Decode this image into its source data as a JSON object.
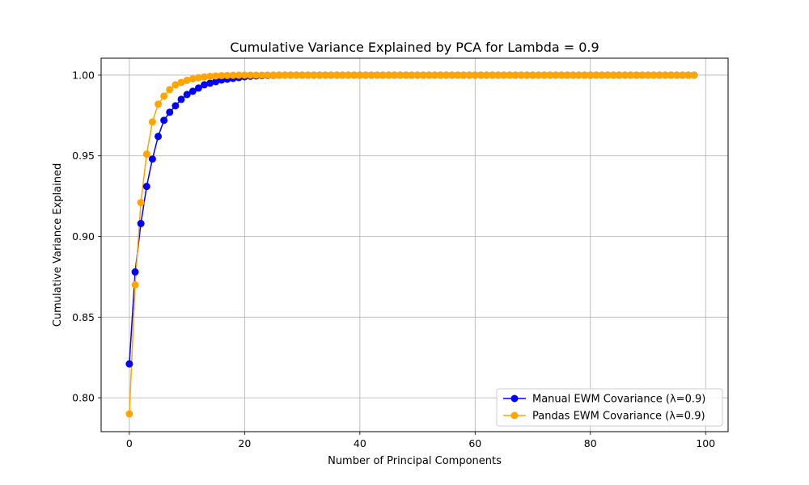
{
  "chart_data": {
    "type": "line",
    "title": "Cumulative Variance Explained by PCA for Lambda = 0.9",
    "xlabel": "Number of Principal Components",
    "ylabel": "Cumulative Variance Explained",
    "xlim": [
      -4.9,
      103.9
    ],
    "ylim": [
      0.779,
      1.0105
    ],
    "xticks": [
      0,
      20,
      40,
      60,
      80,
      100
    ],
    "xtick_labels": [
      "0",
      "20",
      "40",
      "60",
      "80",
      "100"
    ],
    "yticks": [
      0.8,
      0.85,
      0.9,
      0.95,
      1.0
    ],
    "ytick_labels": [
      "0.80",
      "0.85",
      "0.90",
      "0.95",
      "1.00"
    ],
    "grid": true,
    "legend_position": "lower-right",
    "x": [
      0,
      1,
      2,
      3,
      4,
      5,
      6,
      7,
      8,
      9,
      10,
      11,
      12,
      13,
      14,
      15,
      16,
      17,
      18,
      19,
      20,
      21,
      22,
      23,
      24,
      25,
      26,
      27,
      28,
      29,
      30,
      31,
      32,
      33,
      34,
      35,
      36,
      37,
      38,
      39,
      40,
      41,
      42,
      43,
      44,
      45,
      46,
      47,
      48,
      49,
      50,
      51,
      52,
      53,
      54,
      55,
      56,
      57,
      58,
      59,
      60,
      61,
      62,
      63,
      64,
      65,
      66,
      67,
      68,
      69,
      70,
      71,
      72,
      73,
      74,
      75,
      76,
      77,
      78,
      79,
      80,
      81,
      82,
      83,
      84,
      85,
      86,
      87,
      88,
      89,
      90,
      91,
      92,
      93,
      94,
      95,
      96,
      97,
      98
    ],
    "series": [
      {
        "name": "Manual EWM Covariance (λ=0.9)",
        "color": "#0000ff",
        "values": [
          0.821,
          0.878,
          0.908,
          0.931,
          0.948,
          0.962,
          0.972,
          0.977,
          0.981,
          0.985,
          0.988,
          0.99,
          0.992,
          0.994,
          0.995,
          0.996,
          0.997,
          0.9975,
          0.998,
          0.9985,
          0.999,
          0.9993,
          0.9995,
          0.9997,
          0.9998,
          0.9999,
          0.99995,
          1.0,
          1.0,
          1.0,
          1.0,
          1.0,
          1.0,
          1.0,
          1.0,
          1.0,
          1.0,
          1.0,
          1.0,
          1.0,
          1.0,
          1.0,
          1.0,
          1.0,
          1.0,
          1.0,
          1.0,
          1.0,
          1.0,
          1.0,
          1.0,
          1.0,
          1.0,
          1.0,
          1.0,
          1.0,
          1.0,
          1.0,
          1.0,
          1.0,
          1.0,
          1.0,
          1.0,
          1.0,
          1.0,
          1.0,
          1.0,
          1.0,
          1.0,
          1.0,
          1.0,
          1.0,
          1.0,
          1.0,
          1.0,
          1.0,
          1.0,
          1.0,
          1.0,
          1.0,
          1.0,
          1.0,
          1.0,
          1.0,
          1.0,
          1.0,
          1.0,
          1.0,
          1.0,
          1.0,
          1.0,
          1.0,
          1.0,
          1.0,
          1.0,
          1.0,
          1.0,
          1.0,
          1.0
        ]
      },
      {
        "name": "Pandas EWM Covariance (λ=0.9)",
        "color": "#ffa500",
        "values": [
          0.79,
          0.87,
          0.921,
          0.951,
          0.971,
          0.982,
          0.987,
          0.991,
          0.994,
          0.9955,
          0.9968,
          0.9977,
          0.9984,
          0.9989,
          0.9992,
          0.9995,
          0.9997,
          0.9998,
          0.9999,
          0.99995,
          1.0,
          1.0,
          1.0,
          1.0,
          1.0,
          1.0,
          1.0,
          1.0,
          1.0,
          1.0,
          1.0,
          1.0,
          1.0,
          1.0,
          1.0,
          1.0,
          1.0,
          1.0,
          1.0,
          1.0,
          1.0,
          1.0,
          1.0,
          1.0,
          1.0,
          1.0,
          1.0,
          1.0,
          1.0,
          1.0,
          1.0,
          1.0,
          1.0,
          1.0,
          1.0,
          1.0,
          1.0,
          1.0,
          1.0,
          1.0,
          1.0,
          1.0,
          1.0,
          1.0,
          1.0,
          1.0,
          1.0,
          1.0,
          1.0,
          1.0,
          1.0,
          1.0,
          1.0,
          1.0,
          1.0,
          1.0,
          1.0,
          1.0,
          1.0,
          1.0,
          1.0,
          1.0,
          1.0,
          1.0,
          1.0,
          1.0,
          1.0,
          1.0,
          1.0,
          1.0,
          1.0,
          1.0,
          1.0,
          1.0,
          1.0,
          1.0,
          1.0,
          1.0,
          1.0
        ]
      }
    ]
  }
}
